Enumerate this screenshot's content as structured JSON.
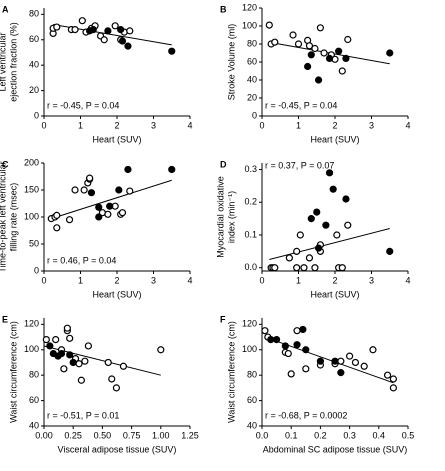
{
  "chart_data": [
    {
      "type": "scatter",
      "panel": "A",
      "xlabel": "Heart (SUV)",
      "ylabel": [
        "Left ventricular",
        "ejection fraction (%)"
      ],
      "annotation": "r = -0.45, P = 0.04",
      "annotation_position": "lower left",
      "xlim": [
        0,
        4
      ],
      "xticks": [
        0,
        1,
        2,
        3,
        4
      ],
      "ylim": [
        0,
        85
      ],
      "yticks": [
        0,
        20,
        40,
        60,
        80
      ],
      "series": [
        {
          "marker": "open",
          "x": [
            0.25,
            0.25,
            0.35,
            0.75,
            0.85,
            1.05,
            1.15,
            1.3,
            1.4,
            1.55,
            1.65,
            1.95,
            2.2,
            2.35,
            2.1
          ],
          "values": [
            65,
            69,
            70,
            68,
            68,
            75,
            66,
            69,
            71,
            63,
            60,
            71,
            66,
            67,
            60
          ]
        },
        {
          "marker": "filled",
          "x": [
            1.25,
            1.35,
            1.75,
            2.1,
            2.15,
            2.3,
            3.5
          ],
          "values": [
            67,
            68,
            67,
            68,
            59,
            55,
            51
          ]
        }
      ],
      "trendline": {
        "x": [
          0.25,
          3.5
        ],
        "values": [
          72,
          56
        ]
      }
    },
    {
      "type": "scatter",
      "panel": "B",
      "xlabel": "Heart (SUV)",
      "ylabel": [
        "Stroke Volume (ml)"
      ],
      "annotation": "r = -0.45, P = 0.04",
      "annotation_position": "lower left",
      "xlim": [
        0,
        4
      ],
      "xticks": [
        0,
        1,
        2,
        3,
        4
      ],
      "ylim": [
        0,
        120
      ],
      "yticks": [
        0,
        20,
        40,
        60,
        80,
        100,
        120
      ],
      "series": [
        {
          "marker": "open",
          "x": [
            0.2,
            0.25,
            0.35,
            0.85,
            1.0,
            1.25,
            1.3,
            1.45,
            1.6,
            1.7,
            2.0,
            2.2,
            2.35,
            1.9
          ],
          "values": [
            101,
            80,
            82,
            90,
            80,
            84,
            78,
            75,
            98,
            70,
            63,
            50,
            85,
            68
          ]
        },
        {
          "marker": "filled",
          "x": [
            1.25,
            1.35,
            1.55,
            1.85,
            2.1,
            2.3,
            3.5
          ],
          "values": [
            55,
            68,
            40,
            64,
            72,
            64,
            70
          ]
        }
      ],
      "trendline": {
        "x": [
          0.2,
          3.5
        ],
        "values": [
          82,
          58
        ]
      }
    },
    {
      "type": "scatter",
      "panel": "C",
      "xlabel": "Heart (SUV)",
      "ylabel": [
        "Time-to-peak left ventricular",
        "filling rate (msec)"
      ],
      "annotation": "r = 0.46, P = 0.04",
      "annotation_position": "lower left",
      "xlim": [
        0,
        4
      ],
      "xticks": [
        0,
        1,
        2,
        3,
        4
      ],
      "ylim": [
        0,
        200
      ],
      "yticks": [
        0,
        50,
        100,
        150,
        200
      ],
      "series": [
        {
          "marker": "open",
          "x": [
            0.2,
            0.3,
            0.35,
            0.35,
            0.7,
            0.85,
            1.1,
            1.2,
            1.25,
            1.25,
            1.6,
            1.75,
            2.1,
            2.15,
            2.35,
            1.95
          ],
          "values": [
            97,
            100,
            103,
            80,
            95,
            150,
            150,
            163,
            170,
            172,
            108,
            105,
            105,
            108,
            148,
            120
          ]
        },
        {
          "marker": "filled",
          "x": [
            1.3,
            1.5,
            1.8,
            2.05,
            2.3,
            3.5,
            1.5
          ],
          "values": [
            145,
            100,
            120,
            150,
            188,
            188,
            118
          ]
        }
      ],
      "trendline": {
        "x": [
          0.2,
          3.5
        ],
        "values": [
          97,
          168
        ]
      }
    },
    {
      "type": "scatter",
      "panel": "D",
      "xlabel": "Heart (SUV)",
      "ylabel": [
        "Myocardial oxidative",
        "index (min⁻¹)"
      ],
      "annotation": "r = 0.37, P = 0.07",
      "annotation_position": "upper left",
      "xlim": [
        0,
        4
      ],
      "xticks": [
        0,
        1,
        2,
        3,
        4
      ],
      "ylim": [
        -0.01,
        0.32
      ],
      "yticks": [
        {
          "value": 0,
          "label": "0.0"
        },
        0.1,
        0.2,
        0.3
      ],
      "series": [
        {
          "marker": "open",
          "x": [
            0.25,
            0.3,
            0.35,
            0.75,
            0.95,
            1.05,
            1.15,
            1.3,
            1.45,
            1.6,
            1.6,
            2.05,
            2.1,
            2.2,
            2.35,
            0.95
          ],
          "values": [
            0,
            0,
            0,
            0.03,
            0.05,
            0.1,
            0,
            0.03,
            0,
            0.05,
            0.07,
            0.1,
            0,
            0,
            0.13,
            0
          ]
        },
        {
          "marker": "filled",
          "x": [
            1.35,
            1.5,
            1.55,
            1.75,
            1.85,
            1.95,
            2.3,
            3.5
          ],
          "values": [
            0.15,
            0.17,
            0.06,
            0.13,
            0.29,
            0.24,
            0.21,
            0.05
          ]
        }
      ],
      "trendline": {
        "x": [
          0.2,
          3.5
        ],
        "values": [
          0.025,
          0.12
        ]
      }
    },
    {
      "type": "scatter",
      "panel": "E",
      "xlabel": "Visceral adipose tissue (SUV)",
      "ylabel": [
        "Waist circumference (cm)"
      ],
      "annotation": "r = -0.51, P = 0.01",
      "annotation_position": "lower left",
      "xlim": [
        0,
        1.25
      ],
      "xticks": [
        {
          "value": 0,
          "label": "0.00"
        },
        0.25,
        {
          "value": 0.5,
          "label": "0.50"
        },
        0.75,
        {
          "value": 1,
          "label": "1.00"
        },
        1.25
      ],
      "ylim": [
        40,
        125
      ],
      "yticks": [
        40,
        60,
        80,
        100,
        120
      ],
      "series": [
        {
          "marker": "open",
          "x": [
            0.02,
            0.1,
            0.15,
            0.2,
            0.2,
            0.22,
            0.27,
            0.3,
            0.32,
            0.35,
            0.38,
            0.55,
            0.58,
            0.62,
            0.68,
            1.0,
            0.17
          ],
          "values": [
            108,
            108,
            100,
            115,
            117,
            109,
            93,
            89,
            76,
            91,
            103,
            90,
            77,
            70,
            87,
            100,
            85
          ]
        },
        {
          "marker": "filled",
          "x": [
            0.05,
            0.08,
            0.12,
            0.15,
            0.22,
            0.25
          ],
          "values": [
            103,
            97,
            95,
            97,
            96,
            90
          ]
        }
      ],
      "trendline": {
        "x": [
          0,
          1
        ],
        "values": [
          103,
          80
        ]
      }
    },
    {
      "type": "scatter",
      "panel": "F",
      "xlabel": "Abdominal SC adipose tissue (SUV)",
      "ylabel": [
        "Waist circumference (cm)"
      ],
      "annotation": "r = -0.68, P = 0.0002",
      "annotation_position": "lower left",
      "xlim": [
        0,
        0.5
      ],
      "xticks": [
        {
          "value": 0,
          "label": "0.0"
        },
        0.1,
        0.2,
        0.3,
        0.4,
        0.5
      ],
      "ylim": [
        40,
        125
      ],
      "yticks": [
        40,
        60,
        80,
        100,
        120
      ],
      "series": [
        {
          "marker": "open",
          "x": [
            0.01,
            0.02,
            0.08,
            0.09,
            0.1,
            0.12,
            0.2,
            0.25,
            0.27,
            0.3,
            0.32,
            0.35,
            0.38,
            0.43,
            0.45,
            0.45,
            0.15
          ],
          "values": [
            115,
            110,
            98,
            97,
            81,
            115,
            88,
            89,
            91,
            95,
            90,
            87,
            100,
            80,
            77,
            70,
            85
          ]
        },
        {
          "marker": "filled",
          "x": [
            0.03,
            0.05,
            0.08,
            0.12,
            0.15,
            0.2,
            0.25,
            0.27,
            0.14
          ],
          "values": [
            108,
            108,
            103,
            104,
            100,
            91,
            91,
            82,
            116
          ]
        }
      ],
      "trendline": {
        "x": [
          0.01,
          0.45
        ],
        "values": [
          110,
          74
        ]
      }
    }
  ]
}
